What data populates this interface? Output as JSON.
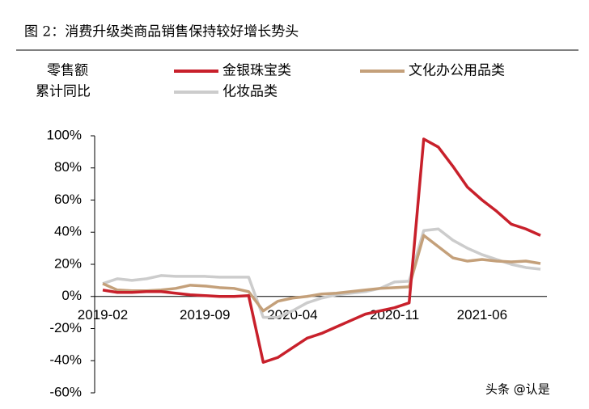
{
  "chart_data": {
    "type": "line",
    "title": "图 2：消费升级类商品销售保持较好增长势头",
    "y_label_lines": [
      "零售额",
      "累计同比"
    ],
    "watermark": "头条 @认是",
    "categories": [
      "2019-02",
      null,
      null,
      null,
      null,
      null,
      null,
      "2019-09",
      null,
      null,
      null,
      null,
      null,
      "2020-04",
      null,
      null,
      null,
      null,
      null,
      null,
      "2020-11",
      null,
      null,
      null,
      null,
      null,
      "2021-06",
      null,
      null,
      null,
      null
    ],
    "series": [
      {
        "name": "金银珠宝类",
        "color": "#c8202b",
        "values": [
          4,
          2.5,
          2.5,
          3,
          3,
          2,
          1,
          0.5,
          0,
          0,
          0.5,
          -41,
          -38,
          -32,
          -26,
          -23,
          -19,
          -15,
          -11,
          -9,
          -7,
          -4,
          98,
          93,
          81,
          68,
          60,
          53,
          45,
          42,
          38
        ]
      },
      {
        "name": "文化办公用品类",
        "color": "#c4a07a",
        "values": [
          8,
          4,
          3.5,
          3.5,
          4,
          5,
          7,
          6.5,
          5.5,
          5,
          3,
          -9,
          -3,
          -1,
          0,
          1.5,
          2,
          3,
          4,
          5,
          5.5,
          6,
          38,
          31,
          24,
          22,
          23,
          22,
          21.5,
          22,
          20.5
        ]
      },
      {
        "name": "化妆品类",
        "color": "#cccccc",
        "values": [
          8,
          11,
          10,
          11,
          13,
          12.5,
          12.5,
          12.5,
          12,
          12,
          12,
          -13,
          -13,
          -9,
          -4,
          -1,
          1,
          2,
          3,
          5,
          9,
          9.5,
          41,
          42,
          35,
          30,
          26,
          23,
          20,
          18,
          17
        ]
      }
    ],
    "ylim": [
      -60,
      100
    ],
    "yticks": [
      {
        "value": -60,
        "label": "-60%"
      },
      {
        "value": -40,
        "label": "-40%"
      },
      {
        "value": -20,
        "label": "-20%"
      },
      {
        "value": 0,
        "label": "0%"
      },
      {
        "value": 20,
        "label": "20%"
      },
      {
        "value": 40,
        "label": "40%"
      },
      {
        "value": 60,
        "label": "60%"
      },
      {
        "value": 80,
        "label": "80%"
      },
      {
        "value": 100,
        "label": "100%"
      }
    ],
    "grid": false
  }
}
